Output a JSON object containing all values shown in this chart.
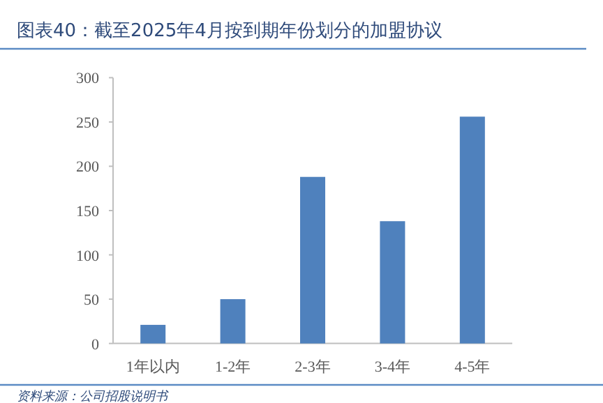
{
  "chart_data": {
    "type": "bar",
    "title": "图表40：截至2025年4月按到期年份划分的加盟协议",
    "categories": [
      "1年以内",
      "1-2年",
      "2-3年",
      "3-4年",
      "4-5年"
    ],
    "values": [
      21,
      50,
      188,
      138,
      256
    ],
    "color": "#4f81bd",
    "ylim": [
      0,
      300
    ],
    "yticks": [
      0,
      50,
      100,
      150,
      200,
      250,
      300
    ],
    "grid": false,
    "annotations": [
      "资料来源：公司招股说明书"
    ]
  }
}
